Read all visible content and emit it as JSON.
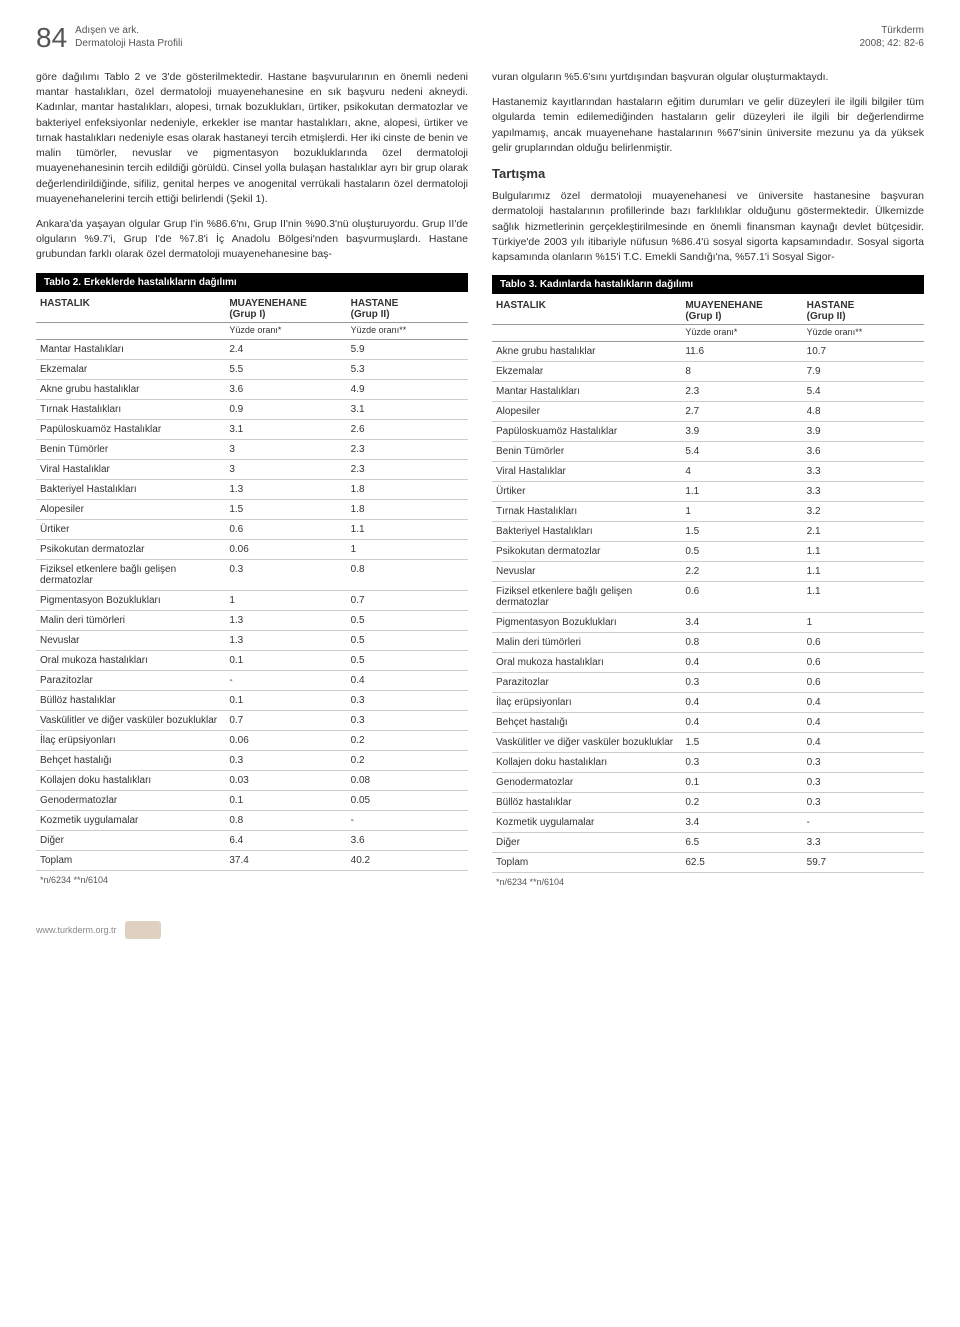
{
  "page_number": "84",
  "header_left_line1": "Adışen ve ark.",
  "header_left_line2": "Dermatoloji Hasta Profili",
  "header_right_line1": "Türkderm",
  "header_right_line2": "2008; 42: 82-6",
  "left_paragraph": "göre dağılımı Tablo 2 ve 3'de gösterilmektedir. Hastane başvurularının en önemli nedeni mantar hastalıkları, özel dermatoloji muayenehanesine en sık başvuru nedeni akneydi. Kadınlar, mantar hastalıkları, alopesi, tırnak bozuklukları, ürtiker, psikokutan dermatozlar ve bakteriyel enfeksiyonlar nedeniyle, erkekler ise mantar hastalıkları, akne, alopesi, ürtiker ve tırnak hastalıkları nedeniyle esas olarak hastaneyi tercih etmişlerdi. Her iki cinste de benin ve malin tümörler, nevuslar ve pigmentasyon bozukluklarında özel dermatoloji muayenehanesinin tercih edildiği görüldü. Cinsel yolla bulaşan hastalıklar ayrı bir grup olarak değerlendirildiğinde, sifiliz, genital herpes ve anogenital verrükali hastaların özel dermatoloji muayenehanelerini tercih ettiği belirlendi (Şekil 1).",
  "left_paragraph2": "Ankara'da yaşayan olgular Grup I'in %86.6'nı, Grup II'nin %90.3'nü oluşturuyordu. Grup II'de olguların %9.7'i, Grup I'de %7.8'i İç Anadolu Bölgesi'nden başvurmuşlardı. Hastane grubundan farklı olarak özel dermatoloji muayenehanesine baş-",
  "right_paragraph": "vuran olguların %5.6'sını yurtdışından başvuran olgular oluşturmaktaydı.",
  "right_paragraph2": "Hastanemiz kayıtlarından hastaların eğitim durumları ve gelir düzeyleri ile ilgili bilgiler tüm olgularda temin edilemediğinden hastaların gelir düzeyleri ile ilgili bir değerlendirme yapılmamış, ancak muayenehane hastalarının %67'sinin üniversite mezunu ya da yüksek gelir gruplarından olduğu belirlenmiştir.",
  "discussion_head": "Tartışma",
  "right_paragraph3": "Bulgularımız özel dermatoloji muayenehanesi ve üniversite hastanesine başvuran dermatoloji hastalarının profillerinde bazı farklılıklar olduğunu göstermektedir. Ülkemizde sağlık hizmetlerinin gerçekleştirilmesinde en önemli finansman kaynağı devlet bütçesidir. Türkiye'de 2003 yılı itibariyle nüfusun %86.4'ü sosyal sigorta kapsamındadır. Sosyal sigorta kapsamında olanların %15'i T.C. Emekli Sandığı'na, %57.1'i Sosyal Sigor-",
  "table2": {
    "title": "Tablo 2. Erkeklerde hastalıkların dağılımı",
    "col_hastalik": "HASTALIK",
    "col_muayenehane": "MUAYENEHANE",
    "col_grup1": "(Grup I)",
    "col_hastane": "HASTANE",
    "col_grup2": "(Grup II)",
    "sub1": "Yüzde oranı*",
    "sub2": "Yüzde oranı**",
    "rows": [
      {
        "n": "Mantar Hastalıkları",
        "a": "2.4",
        "b": "5.9"
      },
      {
        "n": "Ekzemalar",
        "a": "5.5",
        "b": "5.3"
      },
      {
        "n": "Akne grubu hastalıklar",
        "a": "3.6",
        "b": "4.9"
      },
      {
        "n": "Tırnak Hastalıkları",
        "a": "0.9",
        "b": "3.1"
      },
      {
        "n": "Papüloskuamöz Hastalıklar",
        "a": "3.1",
        "b": "2.6"
      },
      {
        "n": "Benin Tümörler",
        "a": "3",
        "b": "2.3"
      },
      {
        "n": "Viral Hastalıklar",
        "a": "3",
        "b": "2.3"
      },
      {
        "n": "Bakteriyel Hastalıkları",
        "a": "1.3",
        "b": "1.8"
      },
      {
        "n": "Alopesiler",
        "a": "1.5",
        "b": "1.8"
      },
      {
        "n": "Ürtiker",
        "a": "0.6",
        "b": "1.1"
      },
      {
        "n": "Psikokutan dermatozlar",
        "a": "0.06",
        "b": "1"
      },
      {
        "n": "Fiziksel etkenlere bağlı gelişen dermatozlar",
        "a": "0.3",
        "b": "0.8"
      },
      {
        "n": "Pigmentasyon Bozuklukları",
        "a": "1",
        "b": "0.7"
      },
      {
        "n": "Malin deri tümörleri",
        "a": "1.3",
        "b": "0.5"
      },
      {
        "n": "Nevuslar",
        "a": "1.3",
        "b": "0.5"
      },
      {
        "n": "Oral mukoza hastalıkları",
        "a": "0.1",
        "b": "0.5"
      },
      {
        "n": "Parazitozlar",
        "a": "-",
        "b": "0.4"
      },
      {
        "n": "Büllöz hastalıklar",
        "a": "0.1",
        "b": "0.3"
      },
      {
        "n": "Vaskülitler ve diğer vasküler bozukluklar",
        "a": "0.7",
        "b": "0.3"
      },
      {
        "n": "İlaç erüpsiyonları",
        "a": "0.06",
        "b": "0.2"
      },
      {
        "n": "Behçet hastalığı",
        "a": "0.3",
        "b": "0.2"
      },
      {
        "n": "Kollajen doku hastalıkları",
        "a": "0.03",
        "b": "0.08"
      },
      {
        "n": "Genodermatozlar",
        "a": "0.1",
        "b": "0.05"
      },
      {
        "n": "Kozmetik uygulamalar",
        "a": "0.8",
        "b": "-"
      },
      {
        "n": "Diğer",
        "a": "6.4",
        "b": "3.6"
      },
      {
        "n": "Toplam",
        "a": "37.4",
        "b": "40.2"
      }
    ],
    "footnote": "*n/6234 **n/6104"
  },
  "table3": {
    "title": "Tablo 3. Kadınlarda hastalıkların dağılımı",
    "col_hastalik": "HASTALIK",
    "col_muayenehane": "MUAYENEHANE",
    "col_grup1": "(Grup I)",
    "col_hastane": "HASTANE",
    "col_grup2": "(Grup II)",
    "sub1": "Yüzde oranı*",
    "sub2": "Yüzde oranı**",
    "rows": [
      {
        "n": "Akne grubu hastalıklar",
        "a": "11.6",
        "b": "10.7"
      },
      {
        "n": "Ekzemalar",
        "a": "8",
        "b": "7.9"
      },
      {
        "n": "Mantar Hastalıkları",
        "a": "2.3",
        "b": "5.4"
      },
      {
        "n": "Alopesiler",
        "a": "2.7",
        "b": "4.8"
      },
      {
        "n": "Papüloskuamöz Hastalıklar",
        "a": "3.9",
        "b": "3.9"
      },
      {
        "n": "Benin Tümörler",
        "a": "5.4",
        "b": "3.6"
      },
      {
        "n": "Viral Hastalıklar",
        "a": "4",
        "b": "3.3"
      },
      {
        "n": "Ürtiker",
        "a": "1.1",
        "b": "3.3"
      },
      {
        "n": "Tırnak Hastalıkları",
        "a": "1",
        "b": "3.2"
      },
      {
        "n": "Bakteriyel Hastalıkları",
        "a": "1.5",
        "b": "2.1"
      },
      {
        "n": "Psikokutan dermatozlar",
        "a": "0.5",
        "b": "1.1"
      },
      {
        "n": "Nevuslar",
        "a": "2.2",
        "b": "1.1"
      },
      {
        "n": "Fiziksel etkenlere bağlı gelişen dermatozlar",
        "a": "0.6",
        "b": "1.1"
      },
      {
        "n": "Pigmentasyon Bozuklukları",
        "a": "3.4",
        "b": "1"
      },
      {
        "n": "Malin deri tümörleri",
        "a": "0.8",
        "b": "0.6"
      },
      {
        "n": "Oral mukoza hastalıkları",
        "a": "0.4",
        "b": "0.6"
      },
      {
        "n": "Parazitozlar",
        "a": "0.3",
        "b": "0.6"
      },
      {
        "n": "İlaç erüpsiyonları",
        "a": "0.4",
        "b": "0.4"
      },
      {
        "n": "Behçet hastalığı",
        "a": "0.4",
        "b": "0.4"
      },
      {
        "n": "Vaskülitler ve diğer vasküler bozukluklar",
        "a": "1.5",
        "b": "0.4"
      },
      {
        "n": "Kollajen doku hastalıkları",
        "a": "0.3",
        "b": "0.3"
      },
      {
        "n": "Genodermatozlar",
        "a": "0.1",
        "b": "0.3"
      },
      {
        "n": "Büllöz hastalıklar",
        "a": "0.2",
        "b": "0.3"
      },
      {
        "n": "Kozmetik uygulamalar",
        "a": "3.4",
        "b": "-"
      },
      {
        "n": "Diğer",
        "a": "6.5",
        "b": "3.3"
      },
      {
        "n": "Toplam",
        "a": "62.5",
        "b": "59.7"
      }
    ],
    "footnote": "*n/6234  **n/6104"
  },
  "footer_url": "www.turkderm.org.tr"
}
